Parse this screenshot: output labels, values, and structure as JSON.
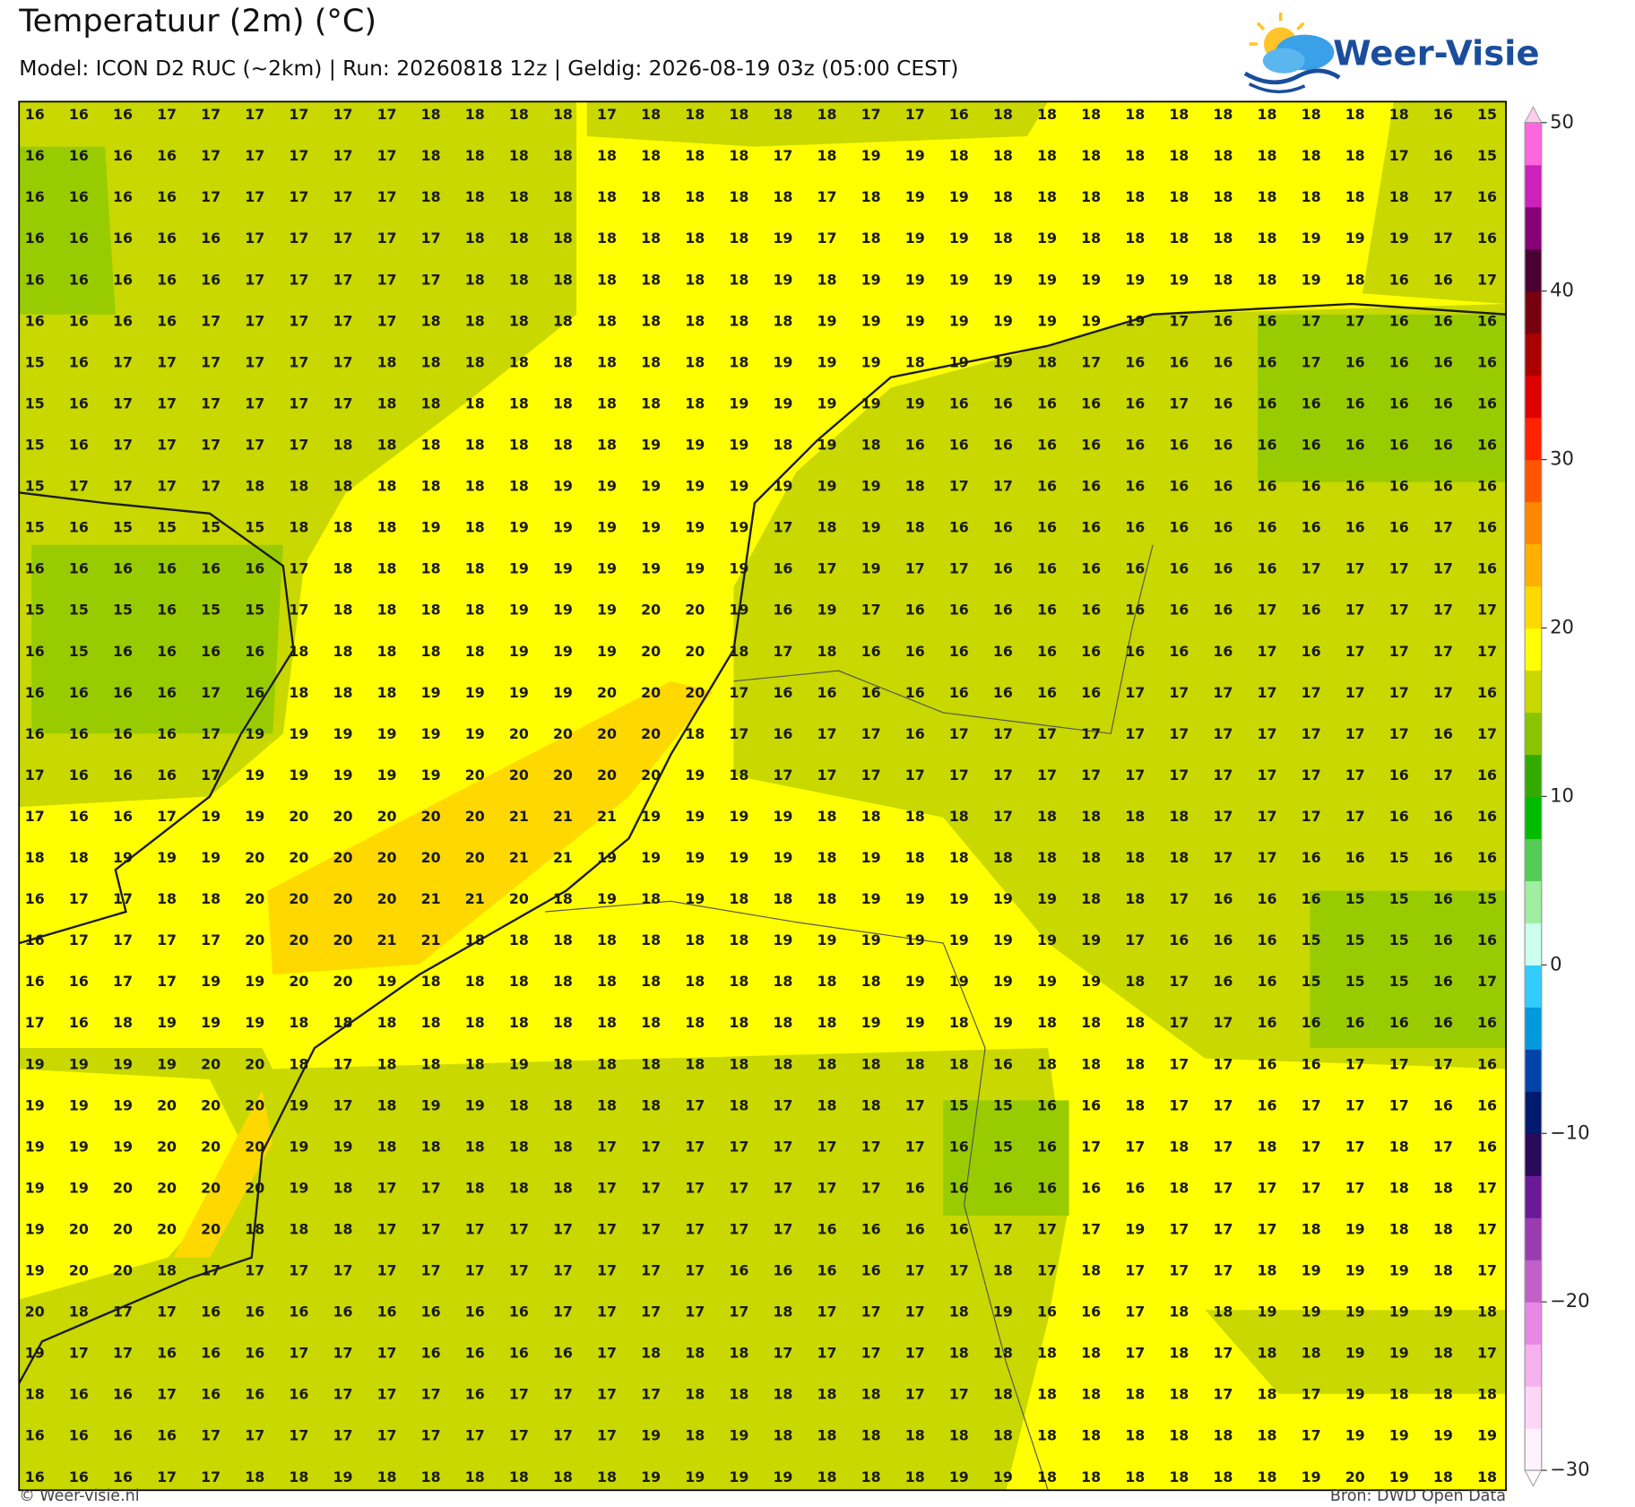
{
  "header": {
    "title": "Temperatuur (2m) (°C)",
    "subtitle": "Model: ICON D2 RUC (~2km)  |  Run: 20260818 12z  |  Geldig: 2026-08-19 03z (05:00 CEST)"
  },
  "logo": "Weer-Visie",
  "footer": {
    "left": "© Weer-visie.nl",
    "right": "Bron: DWD Open Data"
  },
  "colorbar": {
    "lim": [
      -30,
      50
    ],
    "ticks": [
      {
        "value": -30,
        "label": "−30"
      },
      {
        "value": -20,
        "label": "−20"
      },
      {
        "value": -10,
        "label": "−10"
      },
      0,
      10,
      20,
      30,
      40,
      50
    ],
    "colors": [
      "#fff2fd",
      "#ffd5f7",
      "#f5b0ee",
      "#e888e4",
      "#c060c8",
      "#9a3cb0",
      "#6a1a98",
      "#2a0a5a",
      "#001a6e",
      "#0044aa",
      "#0099dd",
      "#33ccff",
      "#ccffee",
      "#a0eea0",
      "#55cc55",
      "#00bb00",
      "#33aa00",
      "#88c400",
      "#c8d800",
      "#ffff00",
      "#ffd800",
      "#ffb000",
      "#ff8800",
      "#ff5500",
      "#ff2200",
      "#dd0000",
      "#aa0000",
      "#770011",
      "#4a0033",
      "#880077",
      "#cc22bb",
      "#ff66dd"
    ]
  },
  "grid": {
    "rows": [
      [
        16,
        16,
        16,
        17,
        17,
        17,
        17,
        17,
        17,
        18,
        18,
        18,
        18,
        17,
        18,
        18,
        18,
        18,
        18,
        17,
        17,
        16,
        18,
        18,
        18,
        18,
        18,
        18,
        18,
        18,
        18,
        18,
        16,
        15
      ],
      [
        16,
        16,
        16,
        16,
        17,
        17,
        17,
        17,
        17,
        18,
        18,
        18,
        18,
        18,
        18,
        18,
        18,
        17,
        18,
        19,
        19,
        18,
        18,
        18,
        18,
        18,
        18,
        18,
        18,
        18,
        18,
        17,
        16,
        15
      ],
      [
        16,
        16,
        16,
        16,
        17,
        17,
        17,
        17,
        17,
        18,
        18,
        18,
        18,
        18,
        18,
        18,
        18,
        18,
        17,
        18,
        19,
        19,
        18,
        18,
        18,
        18,
        18,
        18,
        18,
        18,
        18,
        18,
        17,
        16
      ],
      [
        16,
        16,
        16,
        16,
        16,
        17,
        17,
        17,
        17,
        17,
        18,
        18,
        18,
        18,
        18,
        18,
        18,
        19,
        17,
        18,
        19,
        19,
        18,
        19,
        18,
        18,
        18,
        18,
        18,
        19,
        19,
        19,
        17,
        16
      ],
      [
        16,
        16,
        16,
        16,
        16,
        17,
        17,
        17,
        17,
        17,
        18,
        18,
        18,
        18,
        18,
        18,
        18,
        19,
        18,
        19,
        19,
        19,
        19,
        19,
        19,
        19,
        19,
        18,
        18,
        19,
        18,
        16,
        16,
        17
      ],
      [
        16,
        16,
        16,
        16,
        17,
        17,
        17,
        17,
        17,
        18,
        18,
        18,
        18,
        18,
        18,
        18,
        18,
        18,
        19,
        19,
        19,
        19,
        19,
        19,
        19,
        19,
        17,
        16,
        16,
        17,
        17,
        16,
        16,
        16
      ],
      [
        15,
        16,
        17,
        17,
        17,
        17,
        17,
        17,
        18,
        18,
        18,
        18,
        18,
        18,
        18,
        18,
        18,
        19,
        19,
        19,
        18,
        19,
        19,
        18,
        17,
        16,
        16,
        16,
        16,
        17,
        16,
        16,
        16,
        16
      ],
      [
        15,
        16,
        17,
        17,
        17,
        17,
        17,
        17,
        18,
        18,
        18,
        18,
        18,
        18,
        18,
        18,
        19,
        19,
        19,
        19,
        19,
        16,
        16,
        16,
        16,
        16,
        17,
        16,
        16,
        16,
        16,
        16,
        16,
        16
      ],
      [
        15,
        16,
        17,
        17,
        17,
        17,
        17,
        18,
        18,
        18,
        18,
        18,
        18,
        18,
        19,
        19,
        19,
        18,
        19,
        18,
        16,
        16,
        16,
        16,
        16,
        16,
        16,
        16,
        16,
        16,
        16,
        16,
        16,
        16
      ],
      [
        15,
        17,
        17,
        17,
        17,
        18,
        18,
        18,
        18,
        18,
        18,
        18,
        19,
        19,
        19,
        19,
        19,
        19,
        19,
        19,
        18,
        17,
        17,
        16,
        16,
        16,
        16,
        16,
        16,
        16,
        16,
        16,
        16,
        16
      ],
      [
        15,
        16,
        15,
        15,
        15,
        15,
        18,
        18,
        18,
        19,
        18,
        19,
        19,
        19,
        19,
        19,
        19,
        17,
        18,
        19,
        18,
        16,
        16,
        16,
        16,
        16,
        16,
        16,
        16,
        16,
        16,
        16,
        17,
        16
      ],
      [
        16,
        16,
        16,
        16,
        16,
        16,
        17,
        18,
        18,
        18,
        18,
        19,
        19,
        19,
        19,
        19,
        19,
        16,
        17,
        19,
        17,
        17,
        16,
        16,
        16,
        16,
        16,
        16,
        16,
        17,
        17,
        17,
        17,
        16
      ],
      [
        15,
        15,
        15,
        16,
        15,
        15,
        17,
        18,
        18,
        18,
        18,
        19,
        19,
        19,
        20,
        20,
        19,
        16,
        19,
        17,
        16,
        16,
        16,
        16,
        16,
        16,
        16,
        16,
        17,
        16,
        17,
        17,
        17,
        17
      ],
      [
        16,
        15,
        16,
        16,
        16,
        16,
        18,
        18,
        18,
        18,
        18,
        19,
        19,
        19,
        20,
        20,
        18,
        17,
        18,
        16,
        16,
        16,
        16,
        16,
        16,
        16,
        16,
        16,
        17,
        16,
        17,
        17,
        17,
        17
      ],
      [
        16,
        16,
        16,
        16,
        17,
        16,
        18,
        18,
        18,
        19,
        19,
        19,
        19,
        20,
        20,
        20,
        17,
        16,
        16,
        16,
        16,
        16,
        16,
        16,
        16,
        17,
        17,
        17,
        17,
        17,
        17,
        17,
        17,
        16
      ],
      [
        16,
        16,
        16,
        16,
        17,
        19,
        19,
        19,
        19,
        19,
        19,
        20,
        20,
        20,
        20,
        18,
        17,
        16,
        17,
        17,
        16,
        17,
        17,
        17,
        17,
        17,
        17,
        17,
        17,
        17,
        17,
        17,
        16,
        17
      ],
      [
        17,
        16,
        16,
        16,
        17,
        19,
        19,
        19,
        19,
        19,
        20,
        20,
        20,
        20,
        20,
        19,
        18,
        17,
        17,
        17,
        17,
        17,
        17,
        17,
        17,
        17,
        17,
        17,
        17,
        17,
        17,
        16,
        17,
        16
      ],
      [
        17,
        16,
        16,
        17,
        19,
        19,
        20,
        20,
        20,
        20,
        20,
        21,
        21,
        21,
        19,
        19,
        19,
        19,
        18,
        18,
        18,
        18,
        17,
        18,
        18,
        18,
        18,
        17,
        17,
        17,
        17,
        16,
        16,
        16
      ],
      [
        18,
        18,
        19,
        19,
        19,
        20,
        20,
        20,
        20,
        20,
        20,
        21,
        21,
        19,
        19,
        19,
        19,
        19,
        18,
        19,
        18,
        18,
        18,
        18,
        18,
        18,
        18,
        17,
        17,
        16,
        16,
        15,
        16,
        16
      ],
      [
        16,
        17,
        17,
        18,
        18,
        20,
        20,
        20,
        20,
        21,
        21,
        20,
        18,
        19,
        18,
        19,
        18,
        18,
        18,
        19,
        19,
        19,
        19,
        19,
        18,
        18,
        17,
        16,
        16,
        16,
        15,
        15,
        16,
        15
      ],
      [
        16,
        17,
        17,
        17,
        17,
        20,
        20,
        20,
        21,
        21,
        18,
        18,
        18,
        18,
        18,
        18,
        18,
        19,
        19,
        19,
        19,
        19,
        19,
        19,
        19,
        17,
        16,
        16,
        16,
        15,
        15,
        15,
        16,
        16
      ],
      [
        16,
        16,
        17,
        17,
        19,
        19,
        20,
        20,
        19,
        18,
        18,
        18,
        18,
        18,
        18,
        18,
        18,
        18,
        18,
        18,
        19,
        19,
        19,
        19,
        19,
        18,
        17,
        16,
        16,
        15,
        15,
        15,
        16,
        17
      ],
      [
        17,
        16,
        18,
        19,
        19,
        19,
        18,
        18,
        18,
        18,
        18,
        18,
        18,
        18,
        18,
        18,
        18,
        18,
        18,
        19,
        19,
        18,
        19,
        18,
        18,
        18,
        17,
        17,
        16,
        16,
        16,
        16,
        16,
        16
      ],
      [
        19,
        19,
        19,
        19,
        20,
        20,
        18,
        17,
        18,
        18,
        18,
        19,
        18,
        18,
        18,
        18,
        18,
        18,
        18,
        18,
        18,
        18,
        16,
        18,
        18,
        18,
        17,
        17,
        16,
        16,
        17,
        17,
        17,
        16
      ],
      [
        19,
        19,
        19,
        20,
        20,
        20,
        19,
        17,
        18,
        19,
        19,
        18,
        18,
        18,
        18,
        17,
        18,
        17,
        18,
        18,
        17,
        15,
        15,
        16,
        16,
        18,
        17,
        17,
        16,
        17,
        17,
        17,
        16,
        16
      ],
      [
        19,
        19,
        19,
        20,
        20,
        20,
        19,
        19,
        18,
        18,
        18,
        18,
        18,
        17,
        17,
        17,
        17,
        17,
        17,
        17,
        17,
        16,
        15,
        16,
        17,
        17,
        18,
        17,
        18,
        17,
        17,
        18,
        17,
        16
      ],
      [
        19,
        19,
        20,
        20,
        20,
        20,
        19,
        18,
        17,
        17,
        18,
        18,
        18,
        17,
        17,
        17,
        17,
        17,
        17,
        17,
        16,
        16,
        16,
        16,
        16,
        16,
        18,
        17,
        17,
        17,
        17,
        18,
        18,
        17
      ],
      [
        19,
        20,
        20,
        20,
        20,
        18,
        18,
        18,
        17,
        17,
        17,
        17,
        17,
        17,
        17,
        17,
        17,
        17,
        16,
        16,
        16,
        16,
        17,
        17,
        17,
        19,
        17,
        17,
        17,
        18,
        19,
        18,
        18,
        17
      ],
      [
        19,
        20,
        20,
        18,
        17,
        17,
        17,
        17,
        17,
        17,
        17,
        17,
        17,
        17,
        17,
        17,
        16,
        16,
        16,
        16,
        17,
        17,
        18,
        17,
        18,
        17,
        17,
        17,
        18,
        19,
        19,
        19,
        18,
        17
      ],
      [
        20,
        18,
        17,
        17,
        16,
        16,
        16,
        16,
        16,
        16,
        16,
        16,
        17,
        17,
        17,
        17,
        17,
        18,
        17,
        17,
        17,
        18,
        19,
        16,
        16,
        17,
        18,
        18,
        19,
        19,
        19,
        19,
        19,
        18
      ],
      [
        19,
        17,
        17,
        16,
        16,
        16,
        17,
        17,
        17,
        16,
        16,
        16,
        16,
        17,
        18,
        18,
        18,
        17,
        17,
        17,
        17,
        18,
        18,
        18,
        18,
        17,
        18,
        17,
        18,
        18,
        19,
        19,
        18,
        17
      ],
      [
        18,
        16,
        16,
        17,
        16,
        16,
        16,
        17,
        17,
        17,
        16,
        17,
        17,
        17,
        17,
        18,
        18,
        18,
        18,
        18,
        17,
        17,
        18,
        18,
        18,
        18,
        18,
        17,
        18,
        17,
        19,
        18,
        18,
        18
      ],
      [
        16,
        16,
        16,
        16,
        17,
        17,
        17,
        17,
        17,
        17,
        17,
        17,
        17,
        17,
        19,
        18,
        19,
        18,
        18,
        18,
        18,
        18,
        18,
        18,
        18,
        18,
        18,
        18,
        18,
        17,
        19,
        19,
        19,
        19
      ],
      [
        16,
        16,
        16,
        17,
        17,
        18,
        18,
        19,
        18,
        18,
        18,
        18,
        18,
        18,
        19,
        19,
        19,
        19,
        18,
        18,
        18,
        19,
        19,
        18,
        18,
        18,
        18,
        18,
        18,
        19,
        20,
        19,
        18,
        18
      ]
    ]
  }
}
